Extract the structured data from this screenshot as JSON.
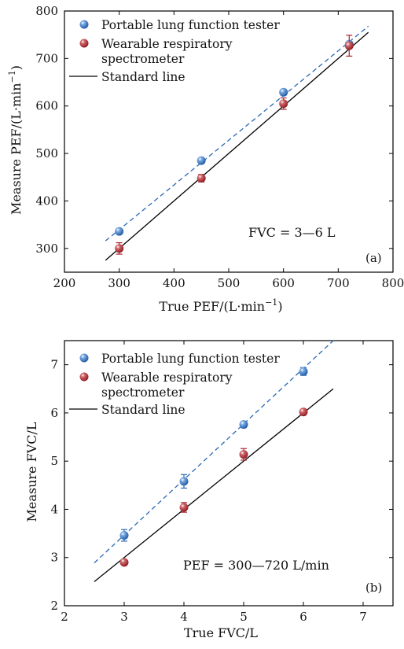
{
  "chart_data": [
    {
      "type": "scatter",
      "panel_label": "(a)",
      "xlabel": "True PEF/(L·min",
      "xlabel_sup": "−1",
      "xlabel_end": ")",
      "ylabel": "Measure PEF/(L·min",
      "ylabel_sup": "−1",
      "ylabel_end": ")",
      "xlim": [
        200,
        800
      ],
      "ylim": [
        250,
        800
      ],
      "xticks": [
        200,
        300,
        400,
        500,
        600,
        700,
        800
      ],
      "yticks": [
        300,
        400,
        500,
        600,
        700,
        800
      ],
      "annotation": "FVC = 3—6 L",
      "grid": false,
      "legend_position": "top-left",
      "series": [
        {
          "name": "Portable lung function tester",
          "color": "#2a68b5",
          "x": [
            300,
            450,
            600,
            720
          ],
          "y": [
            336,
            485,
            629,
            730
          ],
          "err": [
            5,
            4,
            6,
            6
          ]
        },
        {
          "name": "Wearable respiratory spectrometer",
          "name_lines": [
            "Wearable respiratory",
            "spectrometer"
          ],
          "color": "#a8262c",
          "x": [
            300,
            450,
            600,
            720
          ],
          "y": [
            300,
            448,
            605,
            727
          ],
          "err": [
            12,
            8,
            12,
            22
          ]
        }
      ],
      "lines": [
        {
          "name": "fit",
          "style": "dashed",
          "color": "#2a68b5",
          "x": [
            275,
            755
          ],
          "y": [
            316,
            768
          ]
        },
        {
          "name": "Standard line",
          "style": "solid",
          "color": "#000000",
          "x": [
            275,
            755
          ],
          "y": [
            275,
            755
          ]
        }
      ]
    },
    {
      "type": "scatter",
      "panel_label": "(b)",
      "xlabel": "True FVC/L",
      "ylabel": "Measure FVC/L",
      "xlim": [
        2,
        7.5
      ],
      "ylim": [
        2,
        7.5
      ],
      "xticks": [
        2,
        3,
        4,
        5,
        6,
        7
      ],
      "yticks": [
        2,
        3,
        4,
        5,
        6,
        7
      ],
      "annotation": "PEF = 300—720 L/min",
      "grid": false,
      "legend_position": "top-left",
      "series": [
        {
          "name": "Portable lung function tester",
          "color": "#2a68b5",
          "x": [
            3,
            4,
            5,
            6
          ],
          "y": [
            3.46,
            4.58,
            5.76,
            6.86
          ],
          "err": [
            0.12,
            0.14,
            0.06,
            0.08
          ]
        },
        {
          "name": "Wearable respiratory spectrometer",
          "name_lines": [
            "Wearable respiratory",
            "spectrometer"
          ],
          "color": "#a8262c",
          "x": [
            3,
            4,
            5,
            6
          ],
          "y": [
            2.9,
            4.04,
            5.14,
            6.02
          ],
          "err": [
            0.04,
            0.1,
            0.12,
            0.04
          ]
        }
      ],
      "lines": [
        {
          "name": "fit",
          "style": "dashed",
          "color": "#2a68b5",
          "x": [
            2.5,
            6.5
          ],
          "y": [
            2.89,
            7.5
          ]
        },
        {
          "name": "Standard line",
          "style": "solid",
          "color": "#000000",
          "x": [
            2.5,
            6.5
          ],
          "y": [
            2.5,
            6.5
          ]
        }
      ]
    }
  ],
  "legend": {
    "item1": "Portable lung function tester",
    "item2_line1": "Wearable respiratory",
    "item2_line2": "spectrometer",
    "item3": "Standard line"
  }
}
